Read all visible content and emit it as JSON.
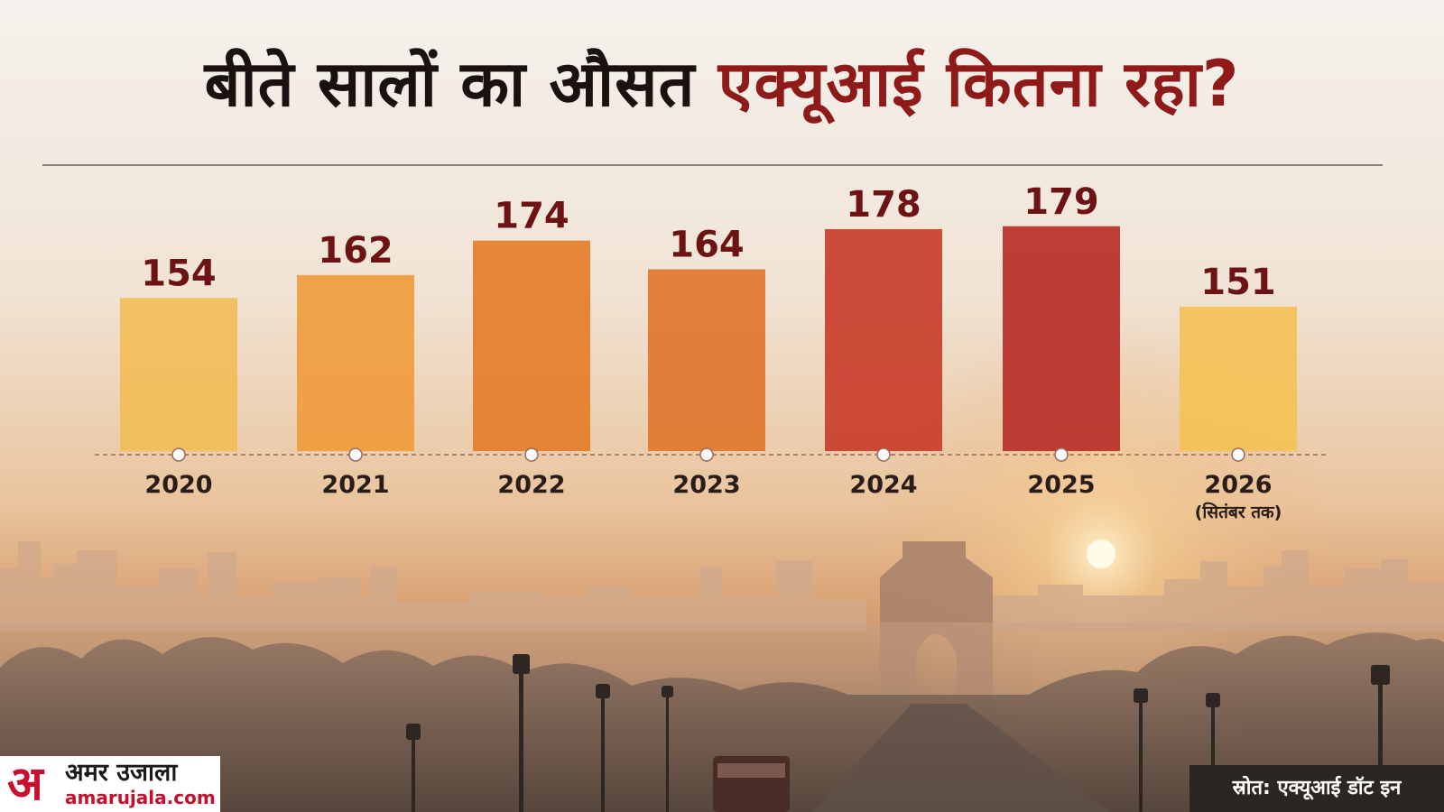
{
  "title": {
    "part1": "बीते सालों का औसत",
    "part2": "एक्यूआई कितना रहा?"
  },
  "colors": {
    "title_dark": "#1a1210",
    "title_red": "#8e1a1a",
    "label_dark": "#6e1313",
    "brand_red": "#c8102e"
  },
  "chart_data": {
    "type": "bar",
    "title": "बीते सालों का औसत एक्यूआई कितना रहा?",
    "categories": [
      "2020",
      "2021",
      "2022",
      "2023",
      "2024",
      "2025",
      "2026"
    ],
    "category_notes": [
      "",
      "",
      "",
      "",
      "",
      "",
      "(सितंबर तक)"
    ],
    "values": [
      154,
      162,
      174,
      164,
      178,
      179,
      151
    ],
    "bar_colors": [
      "#f2bd58",
      "#f09d3e",
      "#e57e2c",
      "#e0772f",
      "#c9402c",
      "#b8302a",
      "#f3c257"
    ],
    "xlabel": "",
    "ylabel": "",
    "grid": false,
    "legend": "none"
  },
  "brand": {
    "mark": "अ",
    "name": "अमर उजाला",
    "url": "amarujala.com"
  },
  "source": "स्रोत: एक्यूआई डॉट इन"
}
